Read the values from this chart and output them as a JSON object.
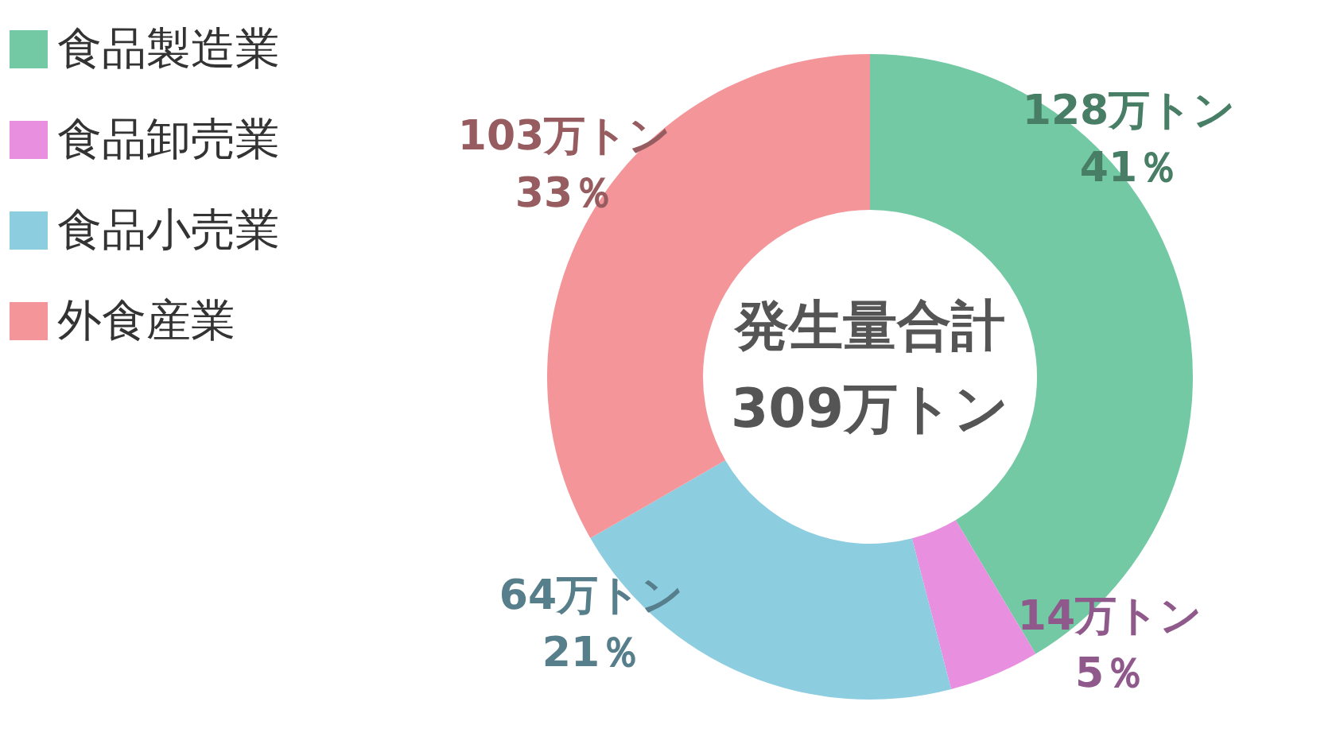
{
  "chart_data": {
    "type": "donut",
    "categories": [
      "食品製造業",
      "食品卸売業",
      "食品小売業",
      "外食産業"
    ],
    "values": [
      128,
      14,
      64,
      103
    ],
    "colors": [
      "#74c9a5",
      "#e88fe0",
      "#8ccde0",
      "#f4959a"
    ],
    "value_labels": [
      "128万トン\n41％",
      "14万トン\n5％",
      "64万トン\n21％",
      "103万トン\n33％"
    ],
    "annotations": [
      "発生量合計",
      "309万トン"
    ],
    "legend": "top left"
  }
}
